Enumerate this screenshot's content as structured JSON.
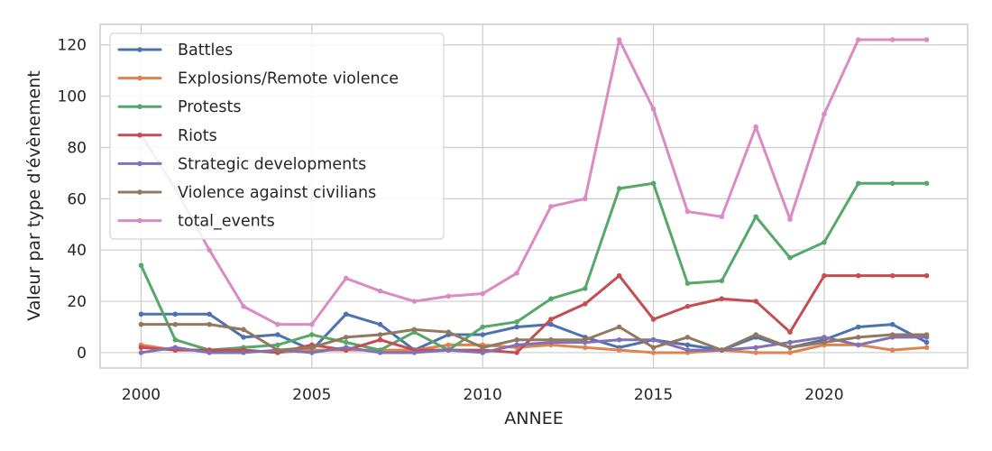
{
  "chart_data": {
    "type": "line",
    "title": "",
    "xlabel": "ANNEE",
    "ylabel": "Valeur par type d'évènement",
    "xlim": [
      1998.8,
      2024.2
    ],
    "ylim": [
      -6,
      128
    ],
    "x_ticks": [
      2000,
      2005,
      2010,
      2015,
      2020
    ],
    "y_ticks": [
      0,
      20,
      40,
      60,
      80,
      100,
      120
    ],
    "grid": true,
    "legend_position": "top-left",
    "x": [
      2000,
      2001,
      2002,
      2003,
      2004,
      2005,
      2006,
      2007,
      2008,
      2009,
      2010,
      2011,
      2012,
      2013,
      2014,
      2015,
      2016,
      2017,
      2018,
      2019,
      2020,
      2021,
      2022,
      2023
    ],
    "series": [
      {
        "name": "Battles",
        "color": "#4c72b0",
        "values": [
          15,
          15,
          15,
          6,
          7,
          1,
          15,
          11,
          1,
          7,
          7,
          10,
          11,
          6,
          2,
          5,
          3,
          1,
          6,
          2,
          5,
          10,
          11,
          4
        ]
      },
      {
        "name": "Explosions/Remote violence",
        "color": "#dd8452",
        "values": [
          3,
          1,
          1,
          1,
          0,
          1,
          1,
          1,
          1,
          3,
          3,
          2,
          3,
          2,
          1,
          0,
          0,
          1,
          0,
          0,
          3,
          3,
          1,
          2
        ]
      },
      {
        "name": "Protests",
        "color": "#55a868",
        "values": [
          34,
          5,
          1,
          2,
          3,
          7,
          4,
          1,
          8,
          1,
          10,
          12,
          21,
          25,
          64,
          66,
          27,
          28,
          53,
          37,
          43,
          66,
          66,
          66
        ]
      },
      {
        "name": "Riots",
        "color": "#c44e52",
        "values": [
          2,
          1,
          1,
          1,
          0,
          3,
          1,
          5,
          1,
          1,
          1,
          0,
          13,
          19,
          30,
          13,
          18,
          21,
          20,
          8,
          30,
          30,
          30,
          30
        ]
      },
      {
        "name": "Strategic developments",
        "color": "#8172b3",
        "values": [
          0,
          2,
          0,
          0,
          1,
          0,
          2,
          0,
          0,
          1,
          0,
          3,
          4,
          4,
          5,
          5,
          1,
          1,
          2,
          4,
          6,
          3,
          6,
          6
        ]
      },
      {
        "name": "Violence against civilians",
        "color": "#937860",
        "values": [
          11,
          11,
          11,
          9,
          1,
          2,
          6,
          7,
          9,
          8,
          2,
          5,
          5,
          5,
          10,
          2,
          6,
          1,
          7,
          2,
          4,
          6,
          7,
          7
        ]
      },
      {
        "name": "total_events",
        "color": "#da8bc3",
        "values": [
          85,
          64,
          40,
          18,
          11,
          11,
          29,
          24,
          20,
          22,
          23,
          31,
          57,
          60,
          122,
          95,
          55,
          53,
          88,
          52,
          93,
          122,
          122,
          122
        ]
      }
    ]
  }
}
